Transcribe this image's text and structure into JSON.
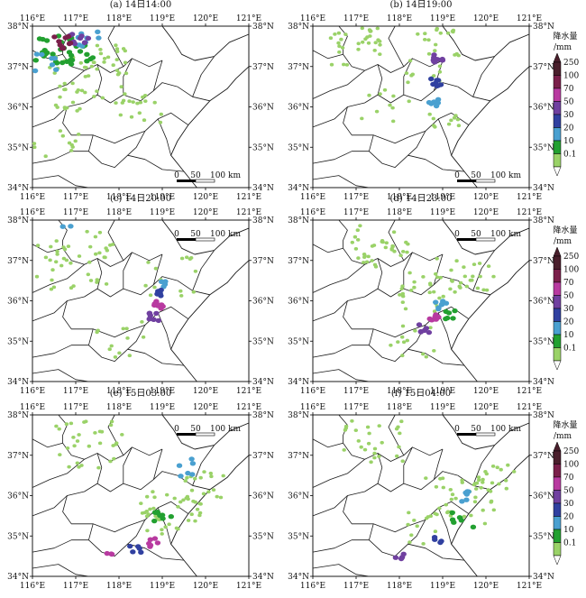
{
  "panels": [
    {
      "title": "(a) 14日14:00",
      "scalebar": {
        "labels": [
          "0",
          "50",
          "100 km"
        ],
        "corner": "bottom-right"
      }
    },
    {
      "title": "(b) 14日19:00",
      "scalebar": {
        "labels": [
          "0",
          "50",
          "100 km"
        ],
        "corner": "bottom-right"
      }
    },
    {
      "title": "(c) 14日20:00",
      "scalebar": {
        "labels": [
          "0",
          "50",
          "100 km"
        ],
        "corner": "top-right"
      }
    },
    {
      "title": "(d) 14日23:00",
      "scalebar": {
        "labels": [
          "0",
          "50",
          "100 km"
        ],
        "corner": "top-right"
      }
    },
    {
      "title": "(e) 15日03:00",
      "scalebar": {
        "labels": [
          "0",
          "50",
          "100 km"
        ],
        "corner": "top-right"
      }
    },
    {
      "title": "(f) 15日04:00",
      "scalebar": {
        "labels": [
          "0",
          "50",
          "100 km"
        ],
        "corner": "top-right"
      }
    }
  ],
  "axes": {
    "lon_labels": [
      "116°E",
      "117°E",
      "118°E",
      "119°E",
      "120°E",
      "121°E"
    ],
    "lat_labels": [
      "38°N",
      "37°N",
      "36°N",
      "35°N",
      "34°N"
    ],
    "lon_range": [
      116,
      121
    ],
    "lat_range": [
      34,
      38
    ]
  },
  "legend": {
    "title_line1": "降水量",
    "title_line2": "/mm",
    "levels": [
      "250",
      "100",
      "70",
      "50",
      "30",
      "20",
      "10",
      "0.1"
    ],
    "colors": [
      "#4a1f2c",
      "#7a1f4a",
      "#b83aa0",
      "#7040a0",
      "#3040a0",
      "#4aa0d0",
      "#22a030",
      "#9ad268"
    ]
  },
  "colors": {
    "light_rain": "#9ad268",
    "green": "#22a030",
    "blue": "#4aa0d0",
    "navy": "#3040a0",
    "purple": "#7040a0",
    "magenta": "#b83aa0",
    "maroon": "#7a1f4a",
    "dark_maroon": "#4a1f2c"
  }
}
